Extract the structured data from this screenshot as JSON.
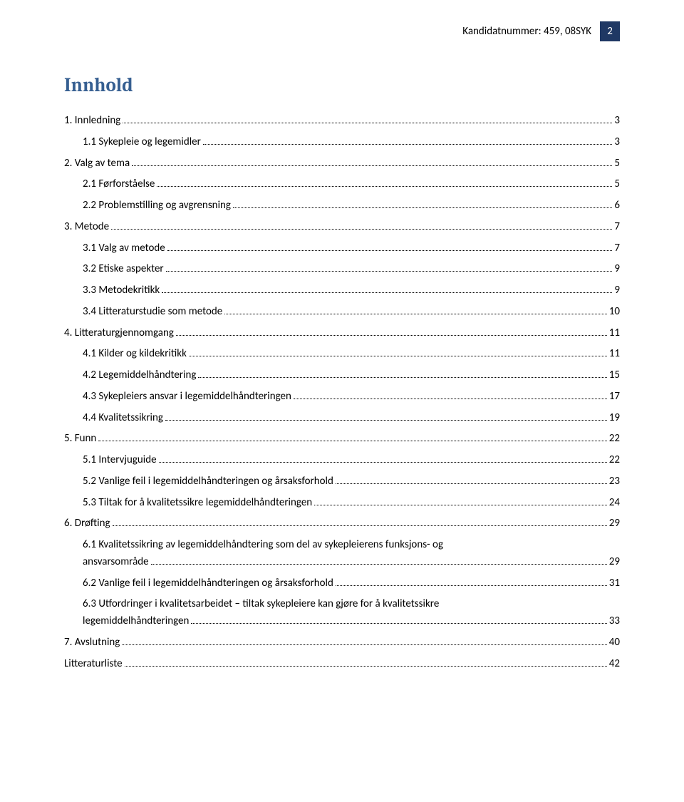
{
  "header": {
    "candidate_label": "Kandidatnummer: 459, 08SYK",
    "page_number": "2"
  },
  "title": "Innhold",
  "toc": [
    {
      "num": "1.",
      "label": "Innledning",
      "page": "3",
      "indent": false
    },
    {
      "num": "1.1",
      "label": "Sykepleie og legemidler",
      "page": "3",
      "indent": true
    },
    {
      "num": "2.",
      "label": "Valg av tema",
      "page": "5",
      "indent": false
    },
    {
      "num": "2.1",
      "label": "Førforståelse",
      "page": "5",
      "indent": true
    },
    {
      "num": "2.2",
      "label": "Problemstilling og avgrensning",
      "page": "6",
      "indent": true
    },
    {
      "num": "3.",
      "label": "Metode",
      "page": "7",
      "indent": false
    },
    {
      "num": "3.1",
      "label": "Valg av metode",
      "page": "7",
      "indent": true
    },
    {
      "num": "3.2",
      "label": "Etiske aspekter",
      "page": "9",
      "indent": true
    },
    {
      "num": "3.3",
      "label": "Metodekritikk",
      "page": "9",
      "indent": true
    },
    {
      "num": "3.4",
      "label": "Litteraturstudie som metode",
      "page": "10",
      "indent": true
    },
    {
      "num": "4.",
      "label": "Litteraturgjennomgang",
      "page": "11",
      "indent": false
    },
    {
      "num": "4.1",
      "label": "Kilder og kildekritikk",
      "page": "11",
      "indent": true
    },
    {
      "num": "4.2",
      "label": "Legemiddelhåndtering",
      "page": "15",
      "indent": true
    },
    {
      "num": "4.3",
      "label": "Sykepleiers ansvar i legemiddelhåndteringen",
      "page": "17",
      "indent": true
    },
    {
      "num": "4.4",
      "label": "Kvalitetssikring",
      "page": "19",
      "indent": true
    },
    {
      "num": "5.",
      "label": "Funn",
      "page": "22",
      "indent": false
    },
    {
      "num": "5.1",
      "label": "Intervjuguide",
      "page": "22",
      "indent": true
    },
    {
      "num": "5.2",
      "label": "Vanlige feil i legemiddelhåndteringen og årsaksforhold",
      "page": "23",
      "indent": true
    },
    {
      "num": "5.3",
      "label": "Tiltak for å kvalitetssikre legemiddelhåndteringen",
      "page": "24",
      "indent": true
    },
    {
      "num": "6.",
      "label": "Drøfting",
      "page": "29",
      "indent": false
    },
    {
      "num": "6.1",
      "label_line1": "Kvalitetssikring av legemiddelhåndtering som del av sykepleierens funksjons- og",
      "label_line2": "ansvarsområde",
      "page": "29",
      "indent": true,
      "wrap": true
    },
    {
      "num": "6.2",
      "label": "Vanlige feil i legemiddelhåndteringen og årsaksforhold",
      "page": "31",
      "indent": true
    },
    {
      "num": "6.3",
      "label_line1": "Utfordringer i kvalitetsarbeidet – tiltak sykepleiere kan gjøre for å kvalitetssikre",
      "label_line2": "legemiddelhåndteringen",
      "page": "33",
      "indent": true,
      "wrap": true
    },
    {
      "num": "7.",
      "label": "Avslutning",
      "page": "40",
      "indent": false
    },
    {
      "num": "",
      "label": "Litteraturliste",
      "page": "42",
      "indent": false
    }
  ]
}
